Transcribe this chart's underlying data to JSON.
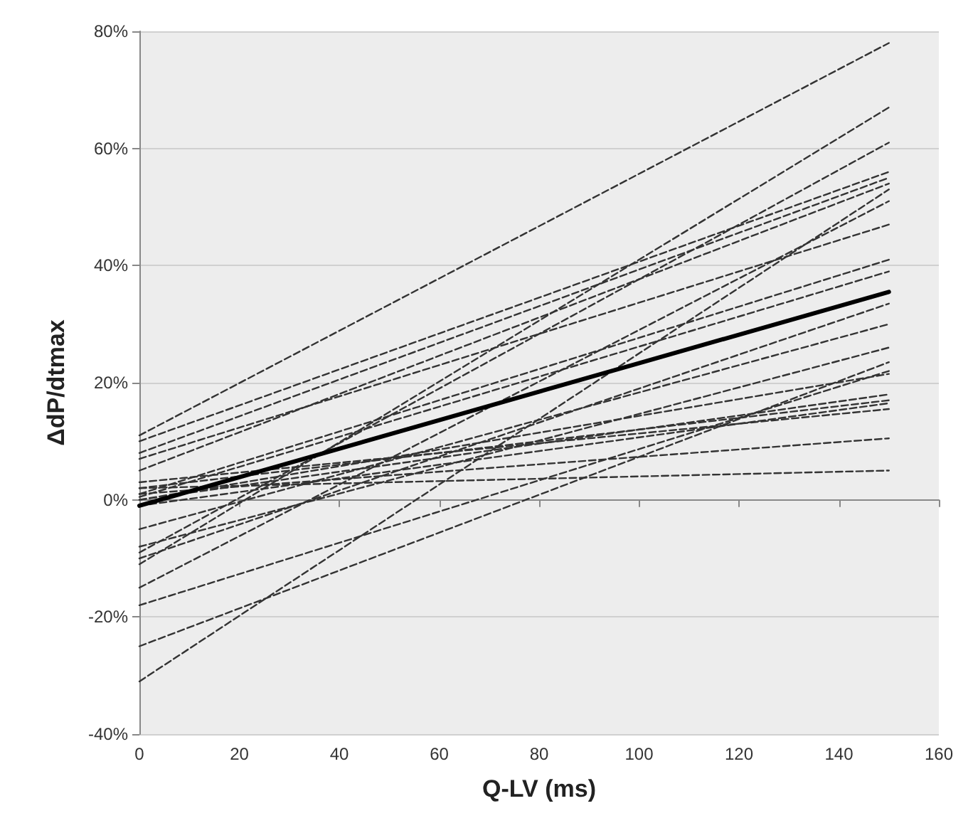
{
  "chart_data": {
    "type": "line",
    "xlabel": "Q-LV (ms)",
    "ylabel": "ΔdP/dtmax",
    "xlim": [
      0,
      160
    ],
    "xticks": [
      0,
      20,
      40,
      60,
      80,
      100,
      120,
      140,
      160
    ],
    "ylim": [
      -40,
      80
    ],
    "yticks": [
      {
        "value": -40,
        "label": "-40%"
      },
      {
        "value": -20,
        "label": "-20%"
      },
      {
        "value": 0,
        "label": "0%"
      },
      {
        "value": 20,
        "label": "20%"
      },
      {
        "value": 40,
        "label": "40%"
      },
      {
        "value": 60,
        "label": "60%"
      },
      {
        "value": 80,
        "label": "80%"
      }
    ],
    "grid": "y",
    "marker": "none",
    "line_style": "dashed",
    "x": [
      0,
      150
    ],
    "series": [
      {
        "color": "#333333",
        "values": [
          11,
          78
        ]
      },
      {
        "color": "#333333",
        "values": [
          10,
          56
        ]
      },
      {
        "color": "#333333",
        "values": [
          8,
          55
        ]
      },
      {
        "color": "#333333",
        "values": [
          7,
          47
        ]
      },
      {
        "color": "#333333",
        "values": [
          5,
          54
        ]
      },
      {
        "color": "#333333",
        "values": [
          -11,
          67
        ]
      },
      {
        "color": "#333333",
        "values": [
          -9,
          61
        ]
      },
      {
        "color": "#333333",
        "values": [
          -31,
          53
        ]
      },
      {
        "color": "#333333",
        "values": [
          -15,
          51
        ]
      },
      {
        "color": "#333333",
        "values": [
          1,
          41
        ]
      },
      {
        "color": "#333333",
        "values": [
          0.5,
          39
        ]
      },
      {
        "color": "#333333",
        "values": [
          -10,
          33.5
        ]
      },
      {
        "color": "#333333",
        "values": [
          -5,
          30
        ]
      },
      {
        "color": "#333333",
        "values": [
          -8,
          26
        ]
      },
      {
        "color": "#333333",
        "values": [
          -25,
          23.5
        ]
      },
      {
        "color": "#333333",
        "values": [
          -18,
          22
        ]
      },
      {
        "color": "#333333",
        "values": [
          0,
          21.5
        ]
      },
      {
        "color": "#333333",
        "values": [
          0,
          18
        ]
      },
      {
        "color": "#333333",
        "values": [
          2,
          17
        ]
      },
      {
        "color": "#333333",
        "values": [
          -1,
          16.5
        ]
      },
      {
        "color": "#333333",
        "values": [
          3,
          15.5
        ]
      },
      {
        "color": "#333333",
        "values": [
          1,
          10.5
        ]
      },
      {
        "color": "#333333",
        "values": [
          2,
          5
        ]
      },
      {
        "color": "#000000",
        "values": [
          -1,
          35.5
        ],
        "line_style": "solid"
      }
    ]
  }
}
